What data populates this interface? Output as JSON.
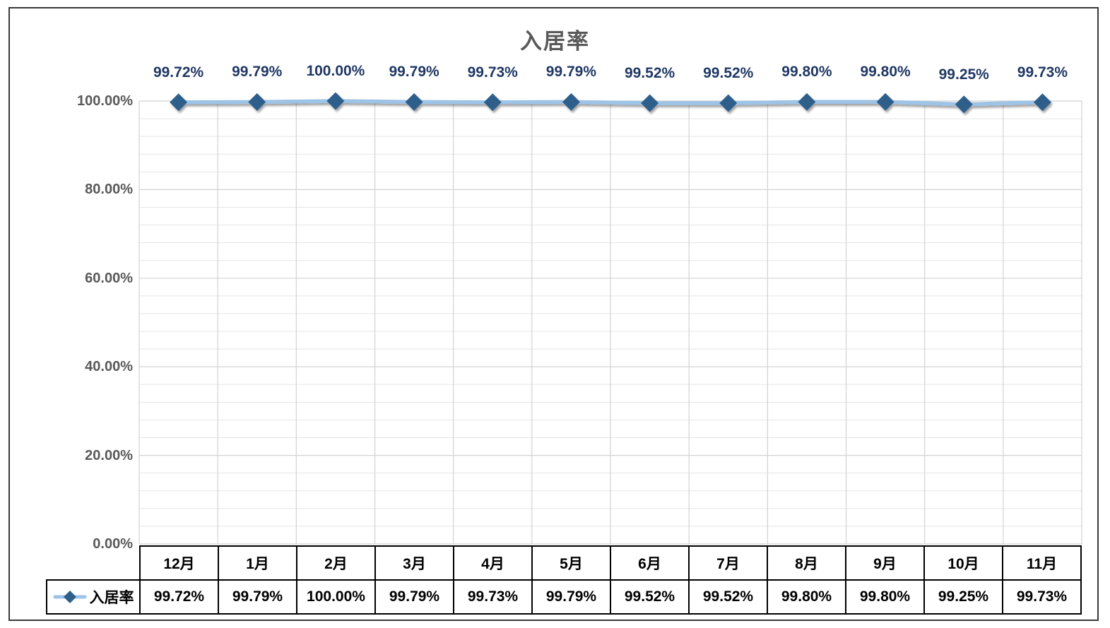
{
  "chart_data": {
    "type": "line",
    "title": "入居率",
    "categories": [
      "12月",
      "1月",
      "2月",
      "3月",
      "4月",
      "5月",
      "6月",
      "7月",
      "8月",
      "9月",
      "10月",
      "11月"
    ],
    "series": [
      {
        "name": "入居率",
        "values": [
          99.72,
          99.79,
          100.0,
          99.79,
          99.73,
          99.79,
          99.52,
          99.52,
          99.8,
          99.8,
          99.25,
          99.73
        ],
        "value_labels": [
          "99.72%",
          "99.79%",
          "100.00%",
          "99.79%",
          "99.73%",
          "99.79%",
          "99.52%",
          "99.52%",
          "99.80%",
          "99.80%",
          "99.25%",
          "99.73%"
        ]
      }
    ],
    "xlabel": "",
    "ylabel": "",
    "ylim": [
      0,
      100
    ],
    "y_ticks": [
      {
        "value": 100,
        "label": "100.00%"
      },
      {
        "value": 80,
        "label": "80.00%"
      },
      {
        "value": 60,
        "label": "60.00%"
      },
      {
        "value": 40,
        "label": "40.00%"
      },
      {
        "value": 20,
        "label": "20.00%"
      },
      {
        "value": 0,
        "label": "0.00%"
      }
    ],
    "grid": {
      "horizontal_major_step_pct": 20,
      "horizontal_minor_step_pct": 4,
      "vertical": true
    },
    "legend_position": "table-left",
    "data_table_shown": true,
    "colors": {
      "line": "#9DC3E6",
      "marker": "#2E5F8B",
      "data_label": "#1F3864",
      "title_text": "#595959",
      "axis_text": "#595959",
      "grid_major": "#D2D2D2",
      "grid_minor": "#E5E5E5",
      "table_border": "#000000",
      "table_text": "#000000",
      "frame_border": "#393939",
      "background": "#FFFFFF"
    }
  }
}
